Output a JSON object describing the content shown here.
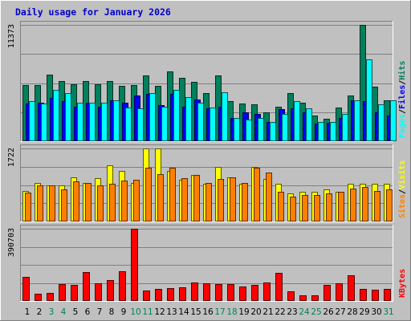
{
  "chart_data": {
    "type": "bar",
    "title": "Daily usage for January 2026",
    "categories": [
      "1",
      "2",
      "3",
      "4",
      "5",
      "6",
      "7",
      "8",
      "9",
      "10",
      "11",
      "12",
      "13",
      "14",
      "15",
      "16",
      "17",
      "18",
      "19",
      "20",
      "21",
      "22",
      "23",
      "24",
      "25",
      "26",
      "27",
      "28",
      "29",
      "30",
      "31"
    ],
    "weekend_days": [
      "3",
      "4",
      "10",
      "11",
      "17",
      "18",
      "24",
      "25",
      "31"
    ],
    "panels": [
      {
        "id": "hits",
        "max_label": "11373",
        "ylim": [
          0,
          11373
        ],
        "legend": [
          "Pages",
          "Files",
          "Hits"
        ],
        "series": [
          {
            "name": "Hits",
            "color": "#00805c",
            "values": [
              5500,
              5500,
              6500,
              5900,
              5600,
              5900,
              5600,
              5900,
              5400,
              5500,
              6400,
              5400,
              6800,
              6200,
              5800,
              4700,
              6400,
              3900,
              3700,
              3600,
              2800,
              3400,
              4700,
              3800,
              2500,
              2200,
              3300,
              4500,
              11373,
              5300,
              4000
            ]
          },
          {
            "name": "Files",
            "color": "#0000ff",
            "values": [
              3700,
              3800,
              4200,
              3900,
              3400,
              3800,
              3400,
              4000,
              3800,
              4500,
              4600,
              3500,
              4600,
              3400,
              4100,
              3200,
              3400,
              2300,
              2800,
              2700,
              1900,
              3100,
              3200,
              2800,
              1700,
              1800,
              2300,
              4000,
              3900,
              2800,
              2500
            ]
          },
          {
            "name": "Pages",
            "color": "#00ffff",
            "values": [
              3900,
              3700,
              5000,
              4700,
              3800,
              3800,
              3800,
              4000,
              3300,
              3200,
              4700,
              3400,
              5000,
              4300,
              3800,
              3300,
              4800,
              2300,
              2100,
              2300,
              1900,
              2700,
              3900,
              3200,
              1900,
              1900,
              2700,
              4000,
              8000,
              3600,
              4000
            ]
          }
        ]
      },
      {
        "id": "visits",
        "max_label": "1722",
        "ylim": [
          0,
          1722
        ],
        "legend": [
          "Sites",
          "Visits"
        ],
        "series": [
          {
            "name": "Visits",
            "color": "#ffff00",
            "values": [
              720,
              900,
              860,
              860,
              1040,
              900,
              1020,
              1320,
              1200,
              900,
              1722,
              1722,
              1200,
              980,
              1100,
              880,
              1280,
              1040,
              880,
              1280,
              1000,
              880,
              660,
              700,
              700,
              750,
              700,
              880,
              880,
              880,
              880
            ]
          },
          {
            "name": "Sites",
            "color": "#ff8000",
            "values": [
              680,
              850,
              860,
              760,
              950,
              900,
              860,
              880,
              960,
              980,
              1260,
              1120,
              1260,
              1030,
              1100,
              900,
              1000,
              1040,
              900,
              1260,
              1160,
              700,
              580,
              620,
              620,
              660,
              700,
              780,
              820,
              720,
              760
            ]
          }
        ]
      },
      {
        "id": "kbytes",
        "max_label": "390703",
        "ylim": [
          0,
          390703
        ],
        "legend": [
          "KBytes"
        ],
        "series": [
          {
            "name": "KBytes",
            "color": "#ff0000",
            "values": [
              130000,
              40000,
              45000,
              90000,
              85000,
              155000,
              95000,
              115000,
              160000,
              390703,
              55000,
              65000,
              70000,
              75000,
              100000,
              95000,
              90000,
              90000,
              80000,
              85000,
              100000,
              150000,
              50000,
              30000,
              30000,
              85000,
              95000,
              140000,
              65000,
              60000,
              65000
            ]
          }
        ]
      }
    ]
  }
}
